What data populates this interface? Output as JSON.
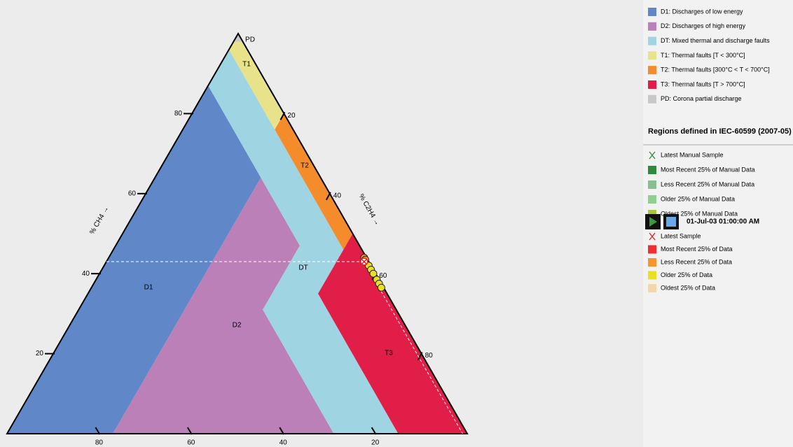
{
  "chart_data": {
    "type": "ternary",
    "axes": {
      "left": {
        "label": "% CH4 →",
        "ticks": [
          20,
          40,
          60,
          80
        ]
      },
      "right": {
        "label": "% C2H4 →",
        "ticks": [
          20,
          40,
          60,
          80
        ]
      },
      "bottom": {
        "ticks": [
          20,
          40,
          60,
          80
        ]
      }
    },
    "regions": [
      {
        "name": "D1",
        "label": "D1: Discharges of low energy",
        "color": "#6088c8"
      },
      {
        "name": "D2",
        "label": "D2: Discharges of high energy",
        "color": "#bc80b8"
      },
      {
        "name": "DT",
        "label": "DT: Mixed thermal and discharge faults",
        "color": "#9fd4e2"
      },
      {
        "name": "T1",
        "label": "T1: Thermal faults [T < 300°C]",
        "color": "#e8e38a"
      },
      {
        "name": "T2",
        "label": "T2: Thermal faults [300°C < T < 700°C]",
        "color": "#f58c2c"
      },
      {
        "name": "T3",
        "label": "T3: Thermal faults [T > 700°C]",
        "color": "#e01e48"
      },
      {
        "name": "PD",
        "label": "PD: Corona partial discharge",
        "color": "#c8c8c8"
      }
    ],
    "samples": {
      "ch4": [
        44,
        43.5,
        42,
        41,
        40,
        38.5,
        37.5,
        36.5
      ],
      "c2h4": [
        55.5,
        56,
        57.5,
        58.5,
        59.5,
        61,
        62,
        63
      ],
      "colors": [
        "#f5952b",
        "#f5952b",
        "#e8e020",
        "#e8e020",
        "#e8e020",
        "#e8e020",
        "#e8e020",
        "#e8e020"
      ]
    },
    "latest": {
      "ch4": 43,
      "c2h4": 56
    },
    "legend": {
      "note": "Regions defined in IEC-60599 (2007-05)",
      "manual": [
        {
          "label": "Latest Manual Sample",
          "color": "#2e8b3e",
          "marker": "x"
        },
        {
          "label": "Most Recent 25% of Manual Data",
          "color": "#2e8b3e"
        },
        {
          "label": "Less Recent 25% of Manual Data",
          "color": "#86c08e"
        },
        {
          "label": "Older 25% of Manual Data",
          "color": "#8fd08f"
        },
        {
          "label": "Oldest 25% of Manual Data",
          "color": "#a8c838"
        }
      ],
      "date": "01-Jul-03 01:00:00 AM",
      "data": [
        {
          "label": "Latest Sample",
          "color": "#e02020",
          "marker": "x"
        },
        {
          "label": "Most Recent 25% of Data",
          "color": "#f03030"
        },
        {
          "label": "Less Recent 25% of Data",
          "color": "#f5952b"
        },
        {
          "label": "Older 25% of Data",
          "color": "#e8e020"
        },
        {
          "label": "Oldest 25% of Data",
          "color": "#f5d6a8"
        }
      ]
    }
  }
}
